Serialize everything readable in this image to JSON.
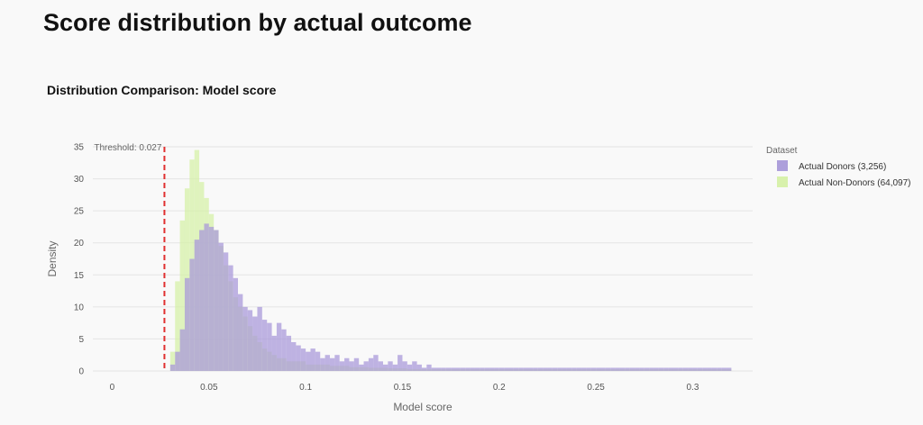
{
  "page": {
    "title": "Score distribution by actual outcome"
  },
  "chart_data": {
    "type": "bar",
    "title": "Distribution Comparison: Model score",
    "xlabel": "Model score",
    "ylabel": "Density",
    "xlim": [
      -0.01,
      0.331
    ],
    "ylim": [
      0,
      35
    ],
    "x_ticks": [
      0,
      0.05,
      0.1,
      0.15,
      0.2,
      0.25,
      0.3
    ],
    "x_tick_labels": [
      "0",
      "0.05",
      "0.1",
      "0.15",
      "0.2",
      "0.25",
      "0.3"
    ],
    "y_ticks": [
      0,
      5,
      10,
      15,
      20,
      25,
      30,
      35
    ],
    "y_tick_labels": [
      "0",
      "5",
      "10",
      "15",
      "20",
      "25",
      "30",
      "35"
    ],
    "grid": true,
    "bin_width": 0.0025,
    "threshold": {
      "value": 0.027,
      "label": "Threshold: 0.027",
      "color": "#e03030"
    },
    "legend": {
      "title": "Dataset",
      "position": "right"
    },
    "series": [
      {
        "name": "Actual Donors (3,256)",
        "color": "#a99ad9",
        "opacity": 0.75,
        "bin_starts": [
          0.03,
          0.0325,
          0.035,
          0.0375,
          0.04,
          0.0425,
          0.045,
          0.0475,
          0.05,
          0.0525,
          0.055,
          0.0575,
          0.06,
          0.0625,
          0.065,
          0.0675,
          0.07,
          0.0725,
          0.075,
          0.0775,
          0.08,
          0.0825,
          0.085,
          0.0875,
          0.09,
          0.0925,
          0.095,
          0.0975,
          0.1,
          0.1025,
          0.105,
          0.1075,
          0.11,
          0.1125,
          0.115,
          0.1175,
          0.12,
          0.1225,
          0.125,
          0.1275,
          0.13,
          0.1325,
          0.135,
          0.1375,
          0.14,
          0.1425,
          0.145,
          0.1475,
          0.15,
          0.1525,
          0.155,
          0.1575,
          0.16,
          0.1625,
          0.165,
          0.1675,
          0.17,
          0.1725,
          0.175,
          0.1775,
          0.18,
          0.1825,
          0.185,
          0.1875,
          0.19,
          0.1925,
          0.195,
          0.1975,
          0.2,
          0.2025,
          0.205,
          0.2075,
          0.21,
          0.2125,
          0.215,
          0.2175,
          0.22,
          0.2225,
          0.225,
          0.2275,
          0.23,
          0.2325,
          0.235,
          0.2375,
          0.24,
          0.2425,
          0.245,
          0.2475,
          0.25,
          0.2525,
          0.255,
          0.2575,
          0.26,
          0.2625,
          0.265,
          0.2675,
          0.27,
          0.2725,
          0.275,
          0.2775,
          0.28,
          0.2825,
          0.285,
          0.2875,
          0.29,
          0.2925,
          0.295,
          0.2975,
          0.3,
          0.3025,
          0.305,
          0.3075,
          0.31,
          0.3125,
          0.315,
          0.3175
        ],
        "values": [
          1.0,
          3.0,
          6.5,
          14.5,
          17.5,
          20.5,
          22.0,
          23.0,
          22.5,
          22.0,
          20.0,
          18.5,
          16.5,
          14.5,
          12.0,
          10.0,
          9.5,
          8.5,
          10.0,
          8.0,
          7.5,
          5.5,
          7.5,
          6.5,
          5.5,
          4.5,
          4.0,
          3.5,
          3.0,
          3.5,
          3.0,
          2.0,
          2.5,
          2.0,
          2.5,
          1.5,
          2.0,
          1.5,
          2.0,
          1.0,
          1.5,
          2.0,
          2.5,
          1.5,
          1.0,
          1.5,
          1.0,
          2.5,
          1.5,
          1.0,
          1.5,
          1.0,
          0.5,
          1.0,
          0.5,
          0.5,
          0.5,
          0.5,
          0.5,
          0.5,
          0.5,
          0.5,
          0.5,
          0.5,
          0.5,
          0.5,
          0.5,
          0.5,
          0.5,
          0.5,
          0.5,
          0.5,
          0.5,
          0.5,
          0.5,
          0.5,
          0.5,
          0.5,
          0.5,
          0.5,
          0.5,
          0.5,
          0.5,
          0.5,
          0.5,
          0.5,
          0.5,
          0.5,
          0.5,
          0.5,
          0.5,
          0.5,
          0.5,
          0.5,
          0.5,
          0.5,
          0.5,
          0.5,
          0.5,
          0.5,
          0.5,
          0.5,
          0.5,
          0.5,
          0.5,
          0.5,
          0.5,
          0.5,
          0.5,
          0.5,
          0.5,
          0.5,
          0.5,
          0.5,
          0.5,
          0.5,
          0.5,
          0.5
        ]
      },
      {
        "name": "Actual Non-Donors (64,097)",
        "color": "#d6f0a8",
        "opacity": 0.75,
        "bin_starts": [
          0.03,
          0.0325,
          0.035,
          0.0375,
          0.04,
          0.0425,
          0.045,
          0.0475,
          0.05,
          0.0525,
          0.055,
          0.0575,
          0.06,
          0.0625,
          0.065,
          0.0675,
          0.07,
          0.0725,
          0.075,
          0.0775,
          0.08,
          0.0825,
          0.085,
          0.0875,
          0.09,
          0.0925,
          0.095,
          0.0975,
          0.1,
          0.1025,
          0.105,
          0.1075,
          0.11,
          0.1125,
          0.115,
          0.1175,
          0.12,
          0.1225,
          0.125,
          0.1275,
          0.13,
          0.1325,
          0.135,
          0.1375,
          0.14,
          0.1425,
          0.145,
          0.1475,
          0.15,
          0.1525,
          0.155,
          0.1575,
          0.16,
          0.1625,
          0.165,
          0.1675,
          0.17,
          0.1725,
          0.175,
          0.1775,
          0.18,
          0.1825,
          0.185,
          0.1875,
          0.19,
          0.1925,
          0.195,
          0.1975,
          0.2,
          0.2025,
          0.205,
          0.2075,
          0.21,
          0.2125,
          0.215,
          0.2175,
          0.22,
          0.2225,
          0.225,
          0.2275,
          0.23,
          0.2325,
          0.235,
          0.2375,
          0.24,
          0.2425,
          0.245,
          0.2475,
          0.25,
          0.2525,
          0.255,
          0.2575,
          0.26,
          0.2625,
          0.265,
          0.2675,
          0.27,
          0.2725,
          0.275,
          0.2775,
          0.28,
          0.2825,
          0.285,
          0.2875,
          0.29,
          0.2925,
          0.295,
          0.2975,
          0.3,
          0.3025,
          0.305,
          0.3075,
          0.31,
          0.3125,
          0.315,
          0.3175
        ],
        "values": [
          3.0,
          14.0,
          23.5,
          28.5,
          33.0,
          34.5,
          29.5,
          27.0,
          24.5,
          22.0,
          19.5,
          16.5,
          14.0,
          11.5,
          10.0,
          8.5,
          7.0,
          5.5,
          4.5,
          3.5,
          3.0,
          2.5,
          2.0,
          2.0,
          1.5,
          1.5,
          1.5,
          1.5,
          1.0,
          1.0,
          1.0,
          1.0,
          1.0,
          0.8,
          0.8,
          0.8,
          0.8,
          0.6,
          0.6,
          0.6,
          0.6,
          0.5,
          0.5,
          0.5,
          0.5,
          0.4,
          0.4,
          0.4,
          0.4,
          0.3,
          0.3,
          0.3,
          0.3,
          0.3,
          0.3,
          0.3,
          0.3,
          0.3,
          0.3,
          0.3,
          0.3,
          0.3,
          0.3,
          0.3,
          0.3,
          0.3,
          0.3,
          0.3,
          0.3,
          0.3,
          0.3,
          0.3,
          0.3,
          0.3,
          0.3,
          0.3,
          0.3,
          0.3,
          0.3,
          0.3,
          0.3,
          0.3,
          0.3,
          0.3,
          0.3,
          0.3,
          0.3,
          0.3,
          0.3,
          0.3,
          0.3,
          0.3,
          0.3,
          0.3,
          0.3,
          0.3,
          0.3,
          0.3,
          0.3,
          0.3,
          0.3,
          0.3,
          0.3,
          0.3,
          0.3,
          0.3,
          0.3,
          0.3,
          0.3,
          0.3,
          0.3,
          0.3,
          0.3,
          0.3,
          0.3,
          0.3,
          0.3,
          0.3,
          0.3,
          0.3
        ]
      }
    ]
  }
}
